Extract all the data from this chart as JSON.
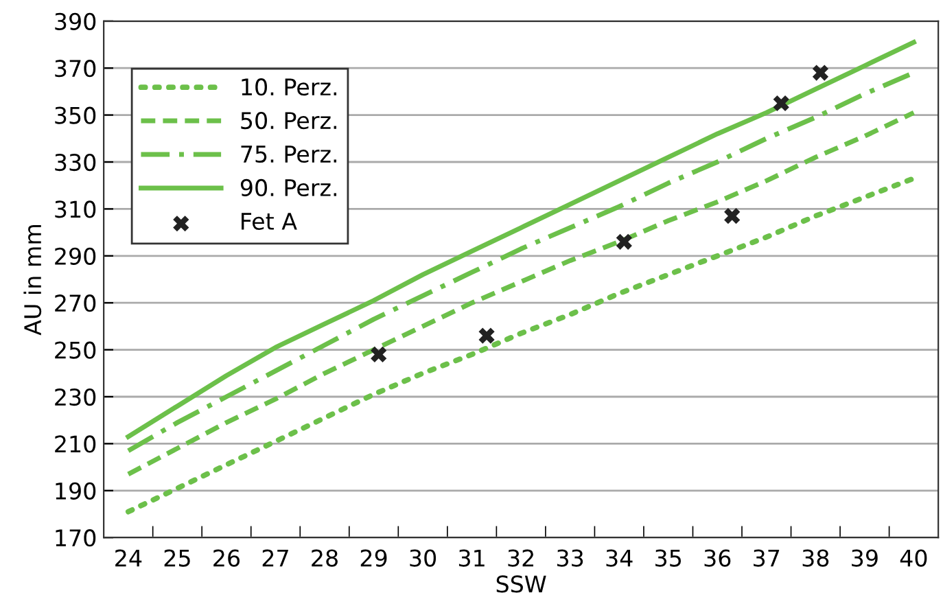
{
  "chart_data": {
    "type": "line",
    "xlabel": "SSW",
    "ylabel": "AU in mm",
    "x": [
      24,
      25,
      26,
      27,
      28,
      29,
      30,
      31,
      32,
      33,
      34,
      35,
      36,
      37,
      38,
      39,
      40
    ],
    "series": [
      {
        "name": "10. Perz.",
        "color": "#6cc04a",
        "line_style": "dotted",
        "values": [
          181,
          191,
          201,
          211,
          221,
          231,
          240,
          248,
          257,
          265,
          274,
          282,
          290,
          298,
          307,
          315,
          323
        ]
      },
      {
        "name": "50. Perz.",
        "color": "#6cc04a",
        "line_style": "dashed",
        "values": [
          197,
          208,
          219,
          229,
          240,
          250,
          260,
          270,
          279,
          288,
          296,
          305,
          313,
          322,
          332,
          341,
          351
        ]
      },
      {
        "name": "75. Perz.",
        "color": "#6cc04a",
        "line_style": "dashdot",
        "values": [
          207,
          219,
          230,
          241,
          252,
          263,
          273,
          283,
          293,
          302,
          311,
          321,
          330,
          340,
          349,
          359,
          368
        ]
      },
      {
        "name": "90. Perz.",
        "color": "#6cc04a",
        "line_style": "solid",
        "values": [
          213,
          226,
          239,
          251,
          261,
          271,
          282,
          292,
          302,
          312,
          322,
          332,
          342,
          351,
          361,
          371,
          381
        ]
      },
      {
        "name": "Fet A",
        "type": "scatter",
        "marker": "cross",
        "color": "#222222",
        "x": [
          29.1,
          31.3,
          34.1,
          36.3,
          37.3,
          38.1
        ],
        "values": [
          248,
          256,
          296,
          307,
          355,
          368
        ]
      }
    ],
    "xlim": [
      23.5,
      40.5
    ],
    "xticks": [
      24,
      25,
      26,
      27,
      28,
      29,
      30,
      31,
      32,
      33,
      34,
      35,
      36,
      37,
      38,
      39,
      40,
      {
        "value": 24.5,
        "label": null
      },
      {
        "value": 25.5,
        "label": null
      },
      {
        "value": 26.5,
        "label": null
      },
      {
        "value": 27.5,
        "label": null
      },
      {
        "value": 28.5,
        "label": null
      },
      {
        "value": 29.5,
        "label": null
      },
      {
        "value": 30.5,
        "label": null
      },
      {
        "value": 31.5,
        "label": null
      },
      {
        "value": 32.5,
        "label": null
      },
      {
        "value": 33.5,
        "label": null
      },
      {
        "value": 34.5,
        "label": null
      },
      {
        "value": 35.5,
        "label": null
      },
      {
        "value": 36.5,
        "label": null
      },
      {
        "value": 37.5,
        "label": null
      },
      {
        "value": 38.5,
        "label": null
      },
      {
        "value": 39.5,
        "label": null
      }
    ],
    "ylim": [
      170,
      390
    ],
    "yticks": [
      170,
      190,
      210,
      230,
      250,
      270,
      290,
      310,
      330,
      350,
      370,
      390
    ],
    "grid": "y",
    "legend": "top left"
  }
}
